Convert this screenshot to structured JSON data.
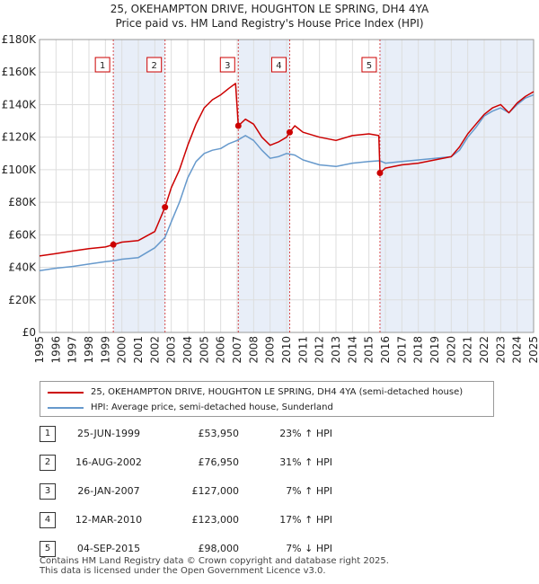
{
  "title_line1": "25, OKEHAMPTON DRIVE, HOUGHTON LE SPRING, DH4 4YA",
  "title_line2": "Price paid vs. HM Land Registry's House Price Index (HPI)",
  "legend": {
    "property_label": "25, OKEHAMPTON DRIVE, HOUGHTON LE SPRING, DH4 4YA (semi-detached house)",
    "hpi_label": "HPI: Average price, semi-detached house, Sunderland"
  },
  "colors": {
    "property": "#cc0000",
    "hpi": "#6699cc",
    "shade": "#e8eef8",
    "marker_line": "#cc0000"
  },
  "transactions": [
    {
      "num": "1",
      "date": "25-JUN-1999",
      "price": "£53,950",
      "hpi": "23% ↑ HPI"
    },
    {
      "num": "2",
      "date": "16-AUG-2002",
      "price": "£76,950",
      "hpi": "31% ↑ HPI"
    },
    {
      "num": "3",
      "date": "26-JAN-2007",
      "price": "£127,000",
      "hpi": "7% ↑ HPI"
    },
    {
      "num": "4",
      "date": "12-MAR-2010",
      "price": "£123,000",
      "hpi": "17% ↑ HPI"
    },
    {
      "num": "5",
      "date": "04-SEP-2015",
      "price": "£98,000",
      "hpi": "7% ↓ HPI"
    }
  ],
  "footer_line1": "Contains HM Land Registry data © Crown copyright and database right 2025.",
  "footer_line2": "This data is licensed under the Open Government Licence v3.0.",
  "chart_data": {
    "type": "line",
    "x_range": [
      1995,
      2025
    ],
    "ylim": [
      0,
      180000
    ],
    "y_ticks": [
      0,
      20000,
      40000,
      60000,
      80000,
      100000,
      120000,
      140000,
      160000,
      180000
    ],
    "y_tick_labels": [
      "£0",
      "£20K",
      "£40K",
      "£60K",
      "£80K",
      "£100K",
      "£120K",
      "£140K",
      "£160K",
      "£180K"
    ],
    "x_ticks": [
      1995,
      1996,
      1997,
      1998,
      1999,
      2000,
      2001,
      2002,
      2003,
      2004,
      2005,
      2006,
      2007,
      2008,
      2009,
      2010,
      2011,
      2012,
      2013,
      2014,
      2015,
      2016,
      2017,
      2018,
      2019,
      2020,
      2021,
      2022,
      2023,
      2024,
      2025
    ],
    "grid": true,
    "legend_placement": "below",
    "shaded_periods": [
      [
        1999.48,
        2002.62
      ],
      [
        2007.07,
        2010.19
      ],
      [
        2015.67,
        2025
      ]
    ],
    "sales": [
      {
        "label": "1",
        "x": 1999.48,
        "y": 53950
      },
      {
        "label": "2",
        "x": 2002.62,
        "y": 76950
      },
      {
        "label": "3",
        "x": 2007.07,
        "y": 127000
      },
      {
        "label": "4",
        "x": 2010.19,
        "y": 123000
      },
      {
        "label": "5",
        "x": 2015.67,
        "y": 98000
      }
    ],
    "series": [
      {
        "name": "HPI: Average price, semi-detached house, Sunderland",
        "x": [
          1995,
          1996,
          1997,
          1998,
          1999,
          1999.48,
          2000,
          2001,
          2002,
          2002.62,
          2003,
          2003.5,
          2004,
          2004.5,
          2005,
          2005.5,
          2006,
          2006.5,
          2007,
          2007.5,
          2008,
          2008.5,
          2009,
          2009.5,
          2010,
          2010.5,
          2011,
          2012,
          2013,
          2014,
          2015,
          2015.67,
          2016,
          2017,
          2018,
          2019,
          2020,
          2020.5,
          2021,
          2021.5,
          2022,
          2022.5,
          2023,
          2023.5,
          2024,
          2024.5,
          2025
        ],
        "y": [
          38000,
          39500,
          40500,
          42000,
          43500,
          44000,
          45000,
          46000,
          52000,
          58500,
          68000,
          80000,
          95000,
          105000,
          110000,
          112000,
          113000,
          116000,
          118000,
          121000,
          118000,
          112000,
          107000,
          108000,
          110000,
          109000,
          106000,
          103000,
          102000,
          104000,
          105000,
          105500,
          104000,
          105000,
          106000,
          107000,
          108000,
          112000,
          120000,
          126000,
          133000,
          136000,
          138000,
          135000,
          140000,
          144000,
          146000
        ]
      },
      {
        "name": "25, OKEHAMPTON DRIVE, HOUGHTON LE SPRING, DH4 4YA (semi-detached house)",
        "x": [
          1995,
          1996,
          1997,
          1998,
          1999,
          1999.48,
          2000,
          2001,
          2002,
          2002.62,
          2003,
          2003.5,
          2004,
          2004.5,
          2005,
          2005.5,
          2006,
          2006.5,
          2006.9,
          2007.07,
          2007.5,
          2008,
          2008.5,
          2009,
          2009.5,
          2010,
          2010.19,
          2010.5,
          2011,
          2012,
          2013,
          2014,
          2015,
          2015.6,
          2015.67,
          2016,
          2017,
          2018,
          2019,
          2020,
          2020.5,
          2021,
          2021.5,
          2022,
          2022.5,
          2023,
          2023.5,
          2024,
          2024.5,
          2025
        ],
        "y": [
          47000,
          48500,
          50000,
          51500,
          52500,
          53950,
          55500,
          56500,
          62000,
          76950,
          89000,
          100000,
          115000,
          128000,
          138000,
          143000,
          146000,
          150000,
          153000,
          127000,
          131000,
          128000,
          120000,
          115000,
          117000,
          120000,
          123000,
          127000,
          123000,
          120000,
          118000,
          121000,
          122000,
          121000,
          98000,
          101000,
          103000,
          104000,
          106000,
          108000,
          114000,
          122000,
          128000,
          134000,
          138000,
          140000,
          135000,
          141000,
          145000,
          148000
        ]
      }
    ]
  }
}
